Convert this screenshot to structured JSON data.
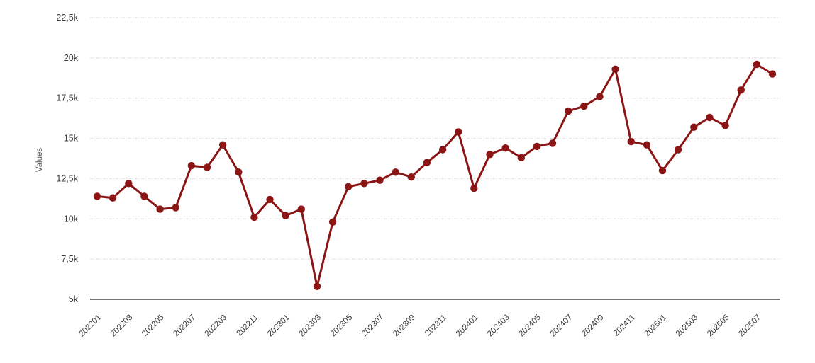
{
  "chart": {
    "ylabel_text": "Values",
    "colors": {
      "series": "#8b1515",
      "grid": "#dcdcdc",
      "axis": "#757575",
      "tick_text": "#3a3a3a",
      "background": "#ffffff"
    }
  },
  "chart_data": {
    "type": "line",
    "title": "",
    "xlabel": "",
    "ylabel": "Values",
    "x": [
      "202201",
      "202202",
      "202203",
      "202204",
      "202205",
      "202206",
      "202207",
      "202208",
      "202209",
      "202210",
      "202211",
      "202212",
      "202301",
      "202302",
      "202303",
      "202304",
      "202305",
      "202306",
      "202307",
      "202308",
      "202309",
      "202310",
      "202311",
      "202312",
      "202401",
      "202402",
      "202403",
      "202404",
      "202405",
      "202406",
      "202407",
      "202408",
      "202409",
      "202410",
      "202411",
      "202412",
      "202501",
      "202502",
      "202503",
      "202504",
      "202505",
      "202506",
      "202507",
      "202508"
    ],
    "values": [
      11400,
      11300,
      12200,
      11400,
      10600,
      10700,
      13300,
      13200,
      14600,
      12900,
      10100,
      11200,
      10200,
      10600,
      5800,
      9800,
      12000,
      12200,
      12400,
      12900,
      12600,
      13500,
      14300,
      15400,
      11900,
      14000,
      14400,
      13800,
      14500,
      14700,
      16700,
      17000,
      17600,
      19300,
      14800,
      14600,
      13000,
      14300,
      15700,
      16300,
      15800,
      18000,
      19600,
      19000
    ],
    "series_name": "Values",
    "series_color": "#8b1515",
    "ylim": [
      5000,
      22500
    ],
    "ytick_values": [
      5000,
      7500,
      10000,
      12500,
      15000,
      17500,
      20000,
      22500
    ],
    "ytick_labels": [
      "5k",
      "7,5k",
      "10k",
      "12,5k",
      "15k",
      "17,5k",
      "20k",
      "22,5k"
    ],
    "xtick_every": 2,
    "xtick_labels_shown": [
      "202201",
      "202203",
      "202205",
      "202207",
      "202209",
      "202211",
      "202301",
      "202303",
      "202305",
      "202307",
      "202309",
      "202311",
      "202401",
      "202403",
      "202405",
      "202407",
      "202409",
      "202411",
      "202501",
      "202503",
      "202505",
      "202507"
    ],
    "grid": true,
    "grid_style": "dashed",
    "legend": "none",
    "marker": "circle"
  }
}
